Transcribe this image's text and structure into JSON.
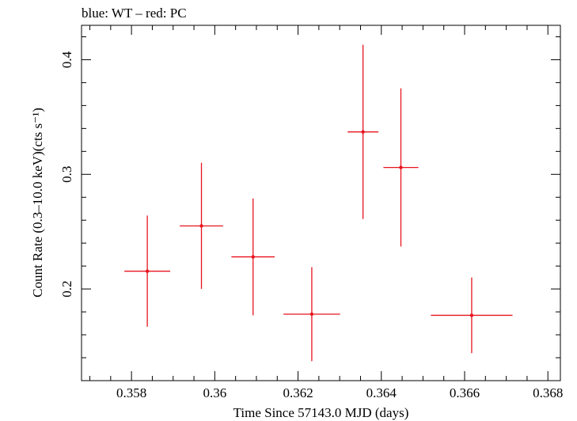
{
  "chart_data": {
    "type": "scatter",
    "title": "blue: WT – red: PC",
    "xlabel": "Time Since 57143.0 MJD (days)",
    "ylabel": "Count Rate (0.3–10.0 keV)(cts s⁻¹)",
    "xlim": [
      0.3568,
      0.3683
    ],
    "ylim": [
      0.12,
      0.43
    ],
    "x_ticks": [
      0.358,
      0.36,
      0.362,
      0.364,
      0.366,
      0.368
    ],
    "x_tick_labels": [
      "0.358",
      "0.36",
      "0.362",
      "0.364",
      "0.366",
      "0.368"
    ],
    "y_ticks": [
      0.2,
      0.3,
      0.4
    ],
    "y_tick_labels": [
      "0.2",
      "0.3",
      "0.4"
    ],
    "grid": false,
    "series": [
      {
        "name": "PC",
        "color": "#e8141e",
        "points": [
          {
            "x": 0.35838,
            "xerr": 0.00055,
            "y": 0.2155,
            "yerr_low": 0.0485,
            "yerr_high": 0.0485
          },
          {
            "x": 0.35968,
            "xerr": 0.00052,
            "y": 0.255,
            "yerr_low": 0.055,
            "yerr_high": 0.055
          },
          {
            "x": 0.36092,
            "xerr": 0.00052,
            "y": 0.228,
            "yerr_low": 0.051,
            "yerr_high": 0.051
          },
          {
            "x": 0.36233,
            "xerr": 0.00068,
            "y": 0.178,
            "yerr_low": 0.041,
            "yerr_high": 0.041
          },
          {
            "x": 0.36356,
            "xerr": 0.00037,
            "y": 0.337,
            "yerr_low": 0.076,
            "yerr_high": 0.076
          },
          {
            "x": 0.36447,
            "xerr": 0.00042,
            "y": 0.306,
            "yerr_low": 0.069,
            "yerr_high": 0.069
          },
          {
            "x": 0.36617,
            "xerr": 0.00098,
            "y": 0.177,
            "yerr_low": 0.033,
            "yerr_high": 0.033
          }
        ]
      }
    ]
  }
}
